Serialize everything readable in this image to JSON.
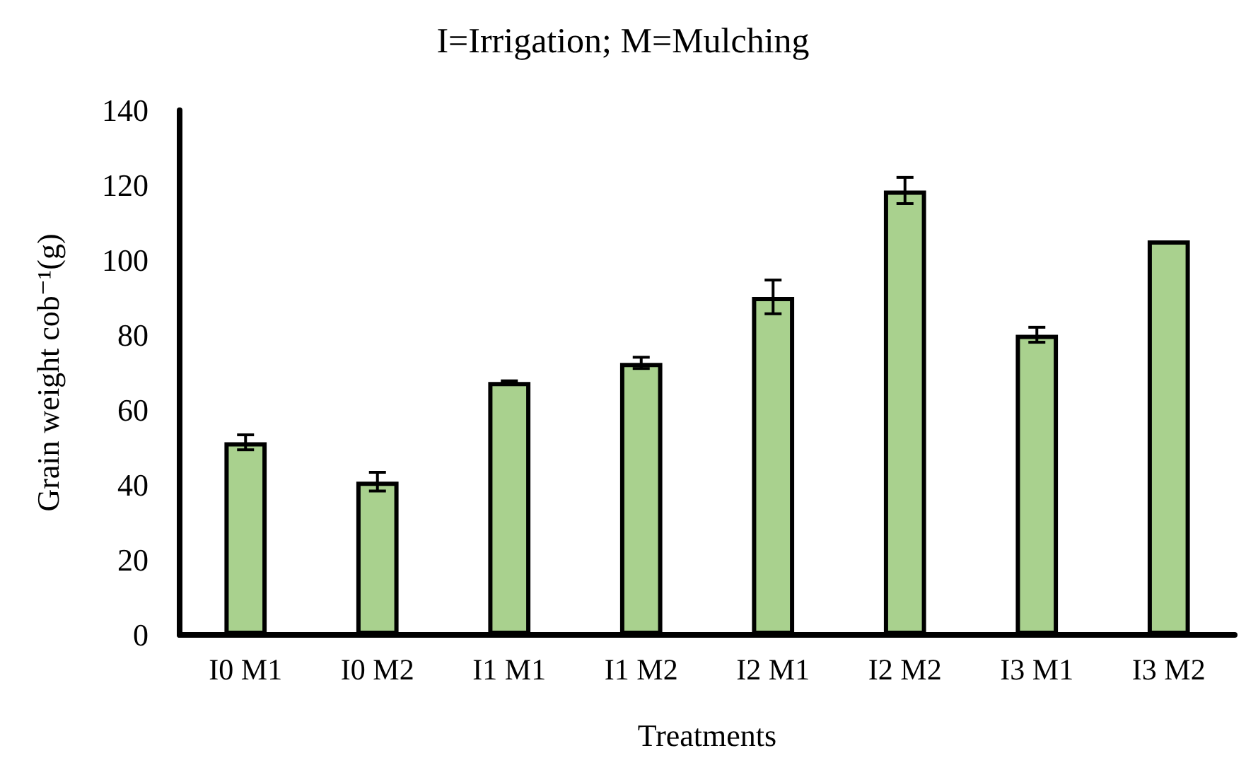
{
  "chart_data": {
    "type": "bar",
    "title": "I=Irrigation; M=Mulching",
    "xlabel": "Treatments",
    "ylabel": "Grain weight cob⁻¹(g)",
    "categories": [
      "I0 M1",
      "I0 M2",
      "I1 M1",
      "I1 M2",
      "I2 M1",
      "I2 M2",
      "I3 M1",
      "I3 M2"
    ],
    "values": [
      51.4,
      40.9,
      67.5,
      72.6,
      90.2,
      118.6,
      80.1,
      105.3
    ],
    "errors": [
      2,
      2.5,
      0.3,
      1.5,
      4.5,
      3.5,
      2,
      null
    ],
    "color": "#a9d18e",
    "ylim": [
      0,
      140
    ],
    "yticks": [
      0,
      20,
      40,
      60,
      80,
      100,
      120,
      140
    ],
    "grid": false
  }
}
